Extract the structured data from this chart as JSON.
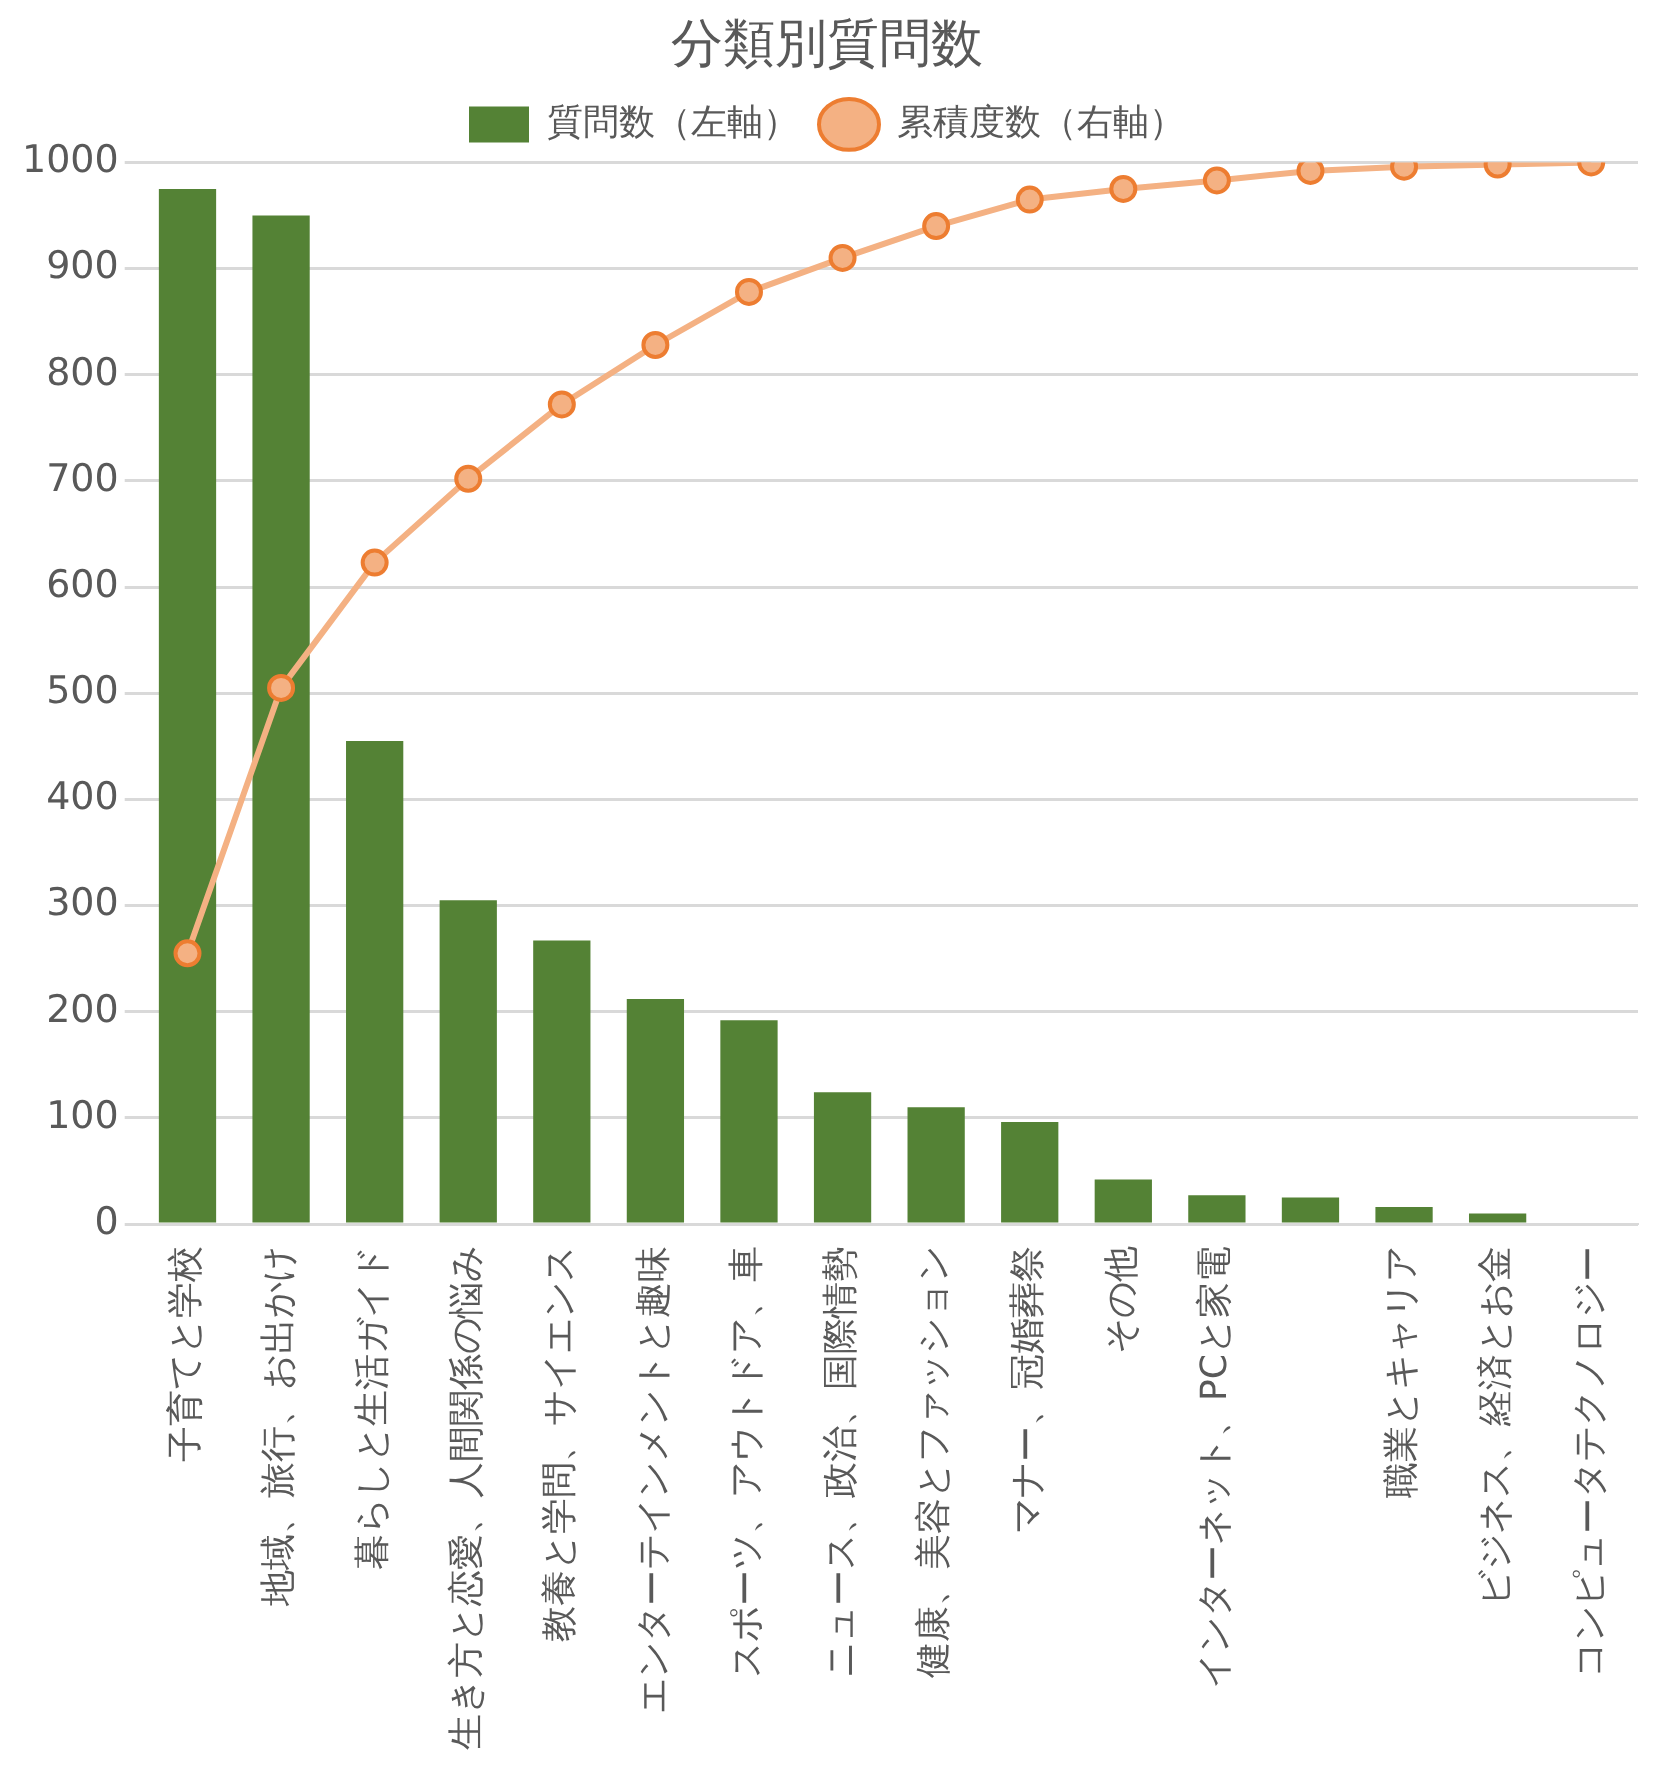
{
  "chart_data": {
    "type": "bar",
    "title": "分類別質問数",
    "categories": [
      "子育てと学校",
      "地域、旅行、お出かけ",
      "暮らしと生活ガイド",
      "生き方と恋愛、人間関係の悩み",
      "教養と学問、サイエンス",
      "エンターテインメントと趣味",
      "スポーツ、アウトドア、車",
      "ニュース、政治、国際情勢",
      "健康、美容とファッション",
      "マナー、冠婚葬祭",
      "その他",
      "インターネット、PCと家電",
      null,
      "職業とキャリア",
      "ビジネス、経済とお金",
      "コンピュータテクノロジー"
    ],
    "series": [
      {
        "name": "質問数（左軸）",
        "color": "#548235",
        "values": [
          975,
          950,
          455,
          305,
          267,
          212,
          192,
          124,
          110,
          96,
          42,
          27,
          25,
          16,
          10,
          0
        ]
      },
      {
        "name": "累積度数（右軸）",
        "type": "line",
        "color": "#f4b183",
        "values": [
          255,
          505,
          623,
          702,
          772,
          828,
          878,
          910,
          940,
          965,
          975,
          983,
          992,
          996,
          998,
          1000
        ]
      }
    ],
    "ylim": [
      0,
      1000
    ],
    "yticks": [
      0,
      100,
      200,
      300,
      400,
      500,
      600,
      700,
      800,
      900,
      1000
    ],
    "grid": "y",
    "legend": "top",
    "marker": "circle",
    "line_style": "solid"
  }
}
